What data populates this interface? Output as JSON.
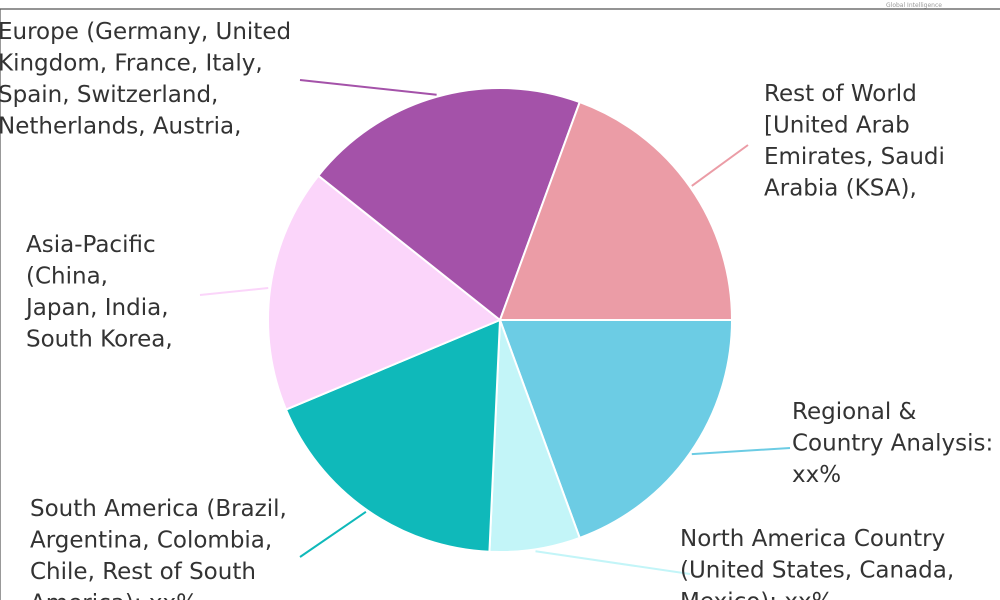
{
  "chart_data": {
    "type": "pie",
    "title": "",
    "slices": [
      {
        "label": "Regional & Country Analysis: xx%",
        "value": 20.0,
        "color": "#6ccce4"
      },
      {
        "label": "North America Country (United States, Canada, Mexico): xx%",
        "value": 6.5,
        "color": "#c3f5f8"
      },
      {
        "label": "South America (Brazil, Argentina, Colombia, Chile, Rest of South America): xx%",
        "value": 18.5,
        "color": "#0fb9ba"
      },
      {
        "label": "Asia-Pacific (China, Japan, India, South Korea,",
        "value": 17.5,
        "color": "#fbd5fa"
      },
      {
        "label": "Europe (Germany, United Kingdom, France, Italy, Spain, Switzerland, Netherlands, Austria,",
        "value": 20.5,
        "color": "#a452a9"
      },
      {
        "label": "Rest of World [United Arab Emirates, Saudi Arabia (KSA),",
        "value": 20.0,
        "color": "#eb9ca6"
      }
    ]
  },
  "labels": [
    {
      "lines": [
        "Regional &",
        "Country Analysis:",
        "xx%"
      ]
    },
    {
      "lines": [
        "North America Country",
        "(United States, Canada,",
        "Mexico): xx%"
      ]
    },
    {
      "lines": [
        "South America (Brazil,",
        "Argentina, Colombia,",
        "Chile, Rest of South",
        "America): xx%"
      ]
    },
    {
      "lines": [
        "Asia-Pacific",
        "(China,",
        "Japan, India,",
        "South Korea,"
      ]
    },
    {
      "lines": [
        "Europe (Germany, United",
        "Kingdom, France, Italy,",
        "Spain, Switzerland,",
        "Netherlands, Austria,"
      ]
    },
    {
      "lines": [
        "Rest of World",
        "[United Arab",
        "Emirates, Saudi",
        "Arabia (KSA),"
      ]
    }
  ],
  "watermark": {
    "text": "Global Intelligence"
  }
}
